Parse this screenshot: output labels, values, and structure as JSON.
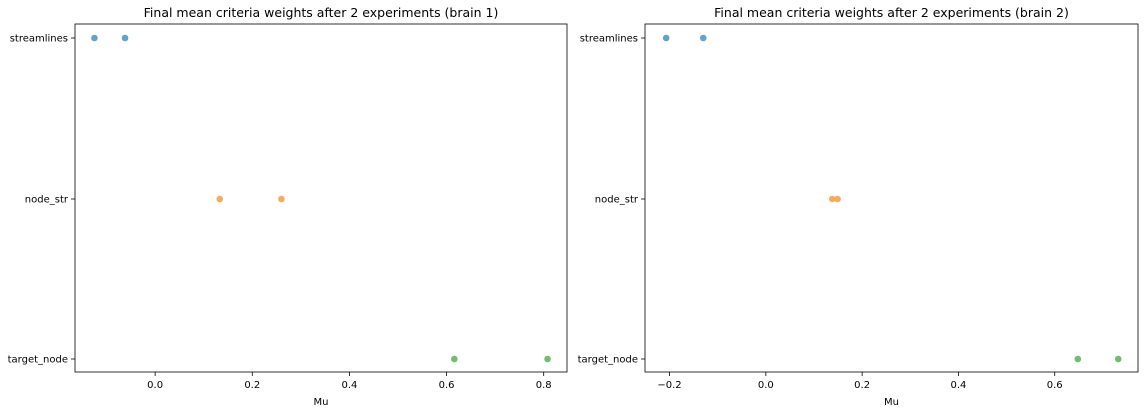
{
  "chart_data": [
    {
      "type": "scatter",
      "title": "Final mean criteria weights after 2 experiments (brain 1)",
      "xlabel": "Mu",
      "ylabel": "",
      "xlim": [
        -0.165,
        0.848
      ],
      "xticks": [
        0.0,
        0.2,
        0.4,
        0.6,
        0.8
      ],
      "xtick_labels": [
        "0.0",
        "0.2",
        "0.4",
        "0.6",
        "0.8"
      ],
      "categories": [
        "streamlines",
        "node_str",
        "target_node"
      ],
      "grid": false,
      "series": [
        {
          "category": "streamlines",
          "color": "#4c9ac8",
          "x": [
            -0.125,
            -0.062
          ]
        },
        {
          "category": "node_str",
          "color": "#f5a34a",
          "x": [
            0.133,
            0.26
          ]
        },
        {
          "category": "target_node",
          "color": "#5cb85c",
          "x": [
            0.616,
            0.808
          ]
        }
      ]
    },
    {
      "type": "scatter",
      "title": "Final mean criteria weights after 2 experiments (brain 2)",
      "xlabel": "Mu",
      "ylabel": "",
      "xlim": [
        -0.251,
        0.773
      ],
      "xticks": [
        -0.2,
        0.0,
        0.2,
        0.4,
        0.6
      ],
      "xtick_labels": [
        "−0.2",
        "0.0",
        "0.2",
        "0.4",
        "0.6"
      ],
      "categories": [
        "streamlines",
        "node_str",
        "target_node"
      ],
      "grid": false,
      "series": [
        {
          "category": "streamlines",
          "color": "#4c9ac8",
          "x": [
            -0.207,
            -0.13
          ]
        },
        {
          "category": "node_str",
          "color": "#f5a34a",
          "x": [
            0.138,
            0.149
          ]
        },
        {
          "category": "target_node",
          "color": "#5cb85c",
          "x": [
            0.648,
            0.732
          ]
        }
      ]
    }
  ]
}
